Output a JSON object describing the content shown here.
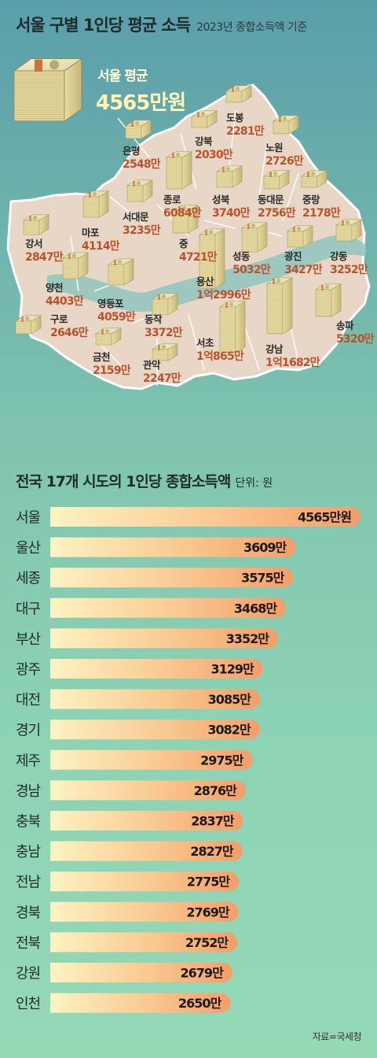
{
  "header": {
    "title": "서울 구별 1인당 평균 소득",
    "subtitle": "2023년 종합소득액 기준"
  },
  "seoul_average": {
    "label": "서울 평균",
    "value": "4565만원"
  },
  "bar_section": {
    "title": "전국 17개 시도의 1인당 종합소득액",
    "unit": "단위: 원"
  },
  "source": "자료=국세청",
  "colors": {
    "map_fill": "#e8d7c6",
    "district_label": "#2a2a2a",
    "district_value": "#b8532c",
    "bar_start": "#fdf0b8",
    "bar_end": "#f5a26e",
    "bar_text": "#1a1a1a"
  },
  "chart_data": [
    {
      "type": "table",
      "title": "서울 구별 1인당 평균 소득",
      "subtitle": "2023년 종합소득액 기준",
      "districts": [
        {
          "name": "도봉",
          "value": "2281만"
        },
        {
          "name": "강북",
          "value": "2030만"
        },
        {
          "name": "노원",
          "value": "2726만"
        },
        {
          "name": "은평",
          "value": "2548만"
        },
        {
          "name": "종로",
          "value": "6084만"
        },
        {
          "name": "성북",
          "value": "3740만"
        },
        {
          "name": "동대문",
          "value": "2756만"
        },
        {
          "name": "중랑",
          "value": "2178만"
        },
        {
          "name": "서대문",
          "value": "3235만"
        },
        {
          "name": "마포",
          "value": "4114만"
        },
        {
          "name": "강서",
          "value": "2847만"
        },
        {
          "name": "중",
          "value": "4721만"
        },
        {
          "name": "성동",
          "value": "5032만"
        },
        {
          "name": "광진",
          "value": "3427만"
        },
        {
          "name": "강동",
          "value": "3252만"
        },
        {
          "name": "양천",
          "value": "4403만"
        },
        {
          "name": "용산",
          "value": "1억2996만"
        },
        {
          "name": "영등포",
          "value": "4059만"
        },
        {
          "name": "구로",
          "value": "2646만"
        },
        {
          "name": "동작",
          "value": "3372만"
        },
        {
          "name": "송파",
          "value": "5320만"
        },
        {
          "name": "서초",
          "value": "1억865만"
        },
        {
          "name": "강남",
          "value": "1억1682만"
        },
        {
          "name": "금천",
          "value": "2159만"
        },
        {
          "name": "관악",
          "value": "2247만"
        }
      ]
    },
    {
      "type": "bar",
      "title": "전국 17개 시도의 1인당 종합소득액",
      "unit": "단위: 원",
      "categories": [
        "서울",
        "울산",
        "세종",
        "대구",
        "부산",
        "광주",
        "대전",
        "경기",
        "제주",
        "경남",
        "충북",
        "충남",
        "전남",
        "경북",
        "전북",
        "강원",
        "인천"
      ],
      "values": [
        4565,
        3609,
        3575,
        3468,
        3352,
        3129,
        3085,
        3082,
        2975,
        2876,
        2837,
        2827,
        2775,
        2769,
        2752,
        2679,
        2650
      ],
      "labels": [
        "4565만원",
        "3609만",
        "3575만",
        "3468만",
        "3352만",
        "3129만",
        "3085만",
        "3082만",
        "2975만",
        "2876만",
        "2837만",
        "2827만",
        "2775만",
        "2769만",
        "2752만",
        "2679만",
        "2650만"
      ]
    }
  ]
}
